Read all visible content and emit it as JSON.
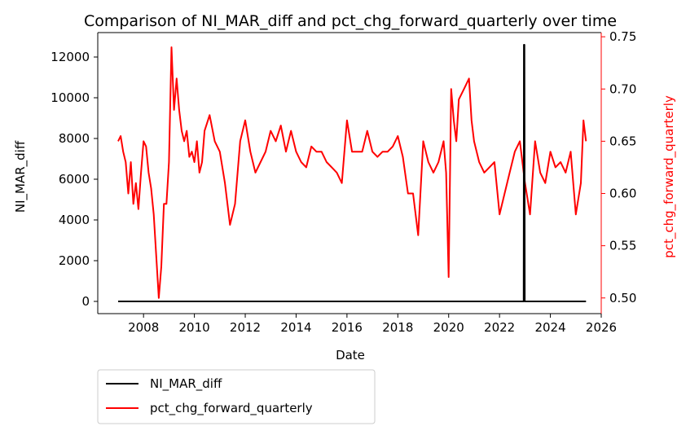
{
  "chart_data": {
    "type": "line",
    "title": "Comparison of NI_MAR_diff and pct_chg_forward_quarterly over time",
    "xlabel": "Date",
    "ylabel_left": "NI_MAR_diff",
    "ylabel_right": "pct_chg_forward_quarterly",
    "xlim": [
      2006.2,
      2026.0
    ],
    "ylim_left": [
      -600,
      13200
    ],
    "ylim_right": [
      0.485,
      0.754
    ],
    "x_ticks": [
      "2008",
      "2010",
      "2012",
      "2014",
      "2016",
      "2018",
      "2020",
      "2022",
      "2024",
      "2026"
    ],
    "y_ticks_left": [
      "0",
      "2000",
      "4000",
      "6000",
      "8000",
      "10000",
      "12000"
    ],
    "y_ticks_right": [
      "0.50",
      "0.55",
      "0.60",
      "0.65",
      "0.70",
      "0.75"
    ],
    "grid": false,
    "legend_position": "below-left",
    "colors": {
      "ni_mar": "#000000",
      "pct_chg": "#ff0000"
    },
    "series": [
      {
        "name": "NI_MAR_diff",
        "axis": "left",
        "x": [
          2007.0,
          2022.95,
          2022.96,
          2022.98,
          2022.99,
          2025.4
        ],
        "y": [
          0,
          0,
          12600,
          12600,
          0,
          0
        ]
      },
      {
        "name": "pct_chg_forward_quarterly",
        "axis": "right",
        "x": [
          2007.0,
          2007.1,
          2007.2,
          2007.3,
          2007.4,
          2007.5,
          2007.6,
          2007.7,
          2007.8,
          2007.9,
          2008.0,
          2008.1,
          2008.2,
          2008.3,
          2008.4,
          2008.5,
          2008.6,
          2008.7,
          2008.8,
          2008.9,
          2009.0,
          2009.1,
          2009.2,
          2009.3,
          2009.4,
          2009.5,
          2009.6,
          2009.7,
          2009.8,
          2009.9,
          2010.0,
          2010.1,
          2010.2,
          2010.3,
          2010.4,
          2010.6,
          2010.8,
          2011.0,
          2011.2,
          2011.4,
          2011.5,
          2011.6,
          2011.8,
          2012.0,
          2012.2,
          2012.4,
          2012.6,
          2012.8,
          2013.0,
          2013.2,
          2013.4,
          2013.6,
          2013.8,
          2014.0,
          2014.2,
          2014.4,
          2014.6,
          2014.8,
          2015.0,
          2015.2,
          2015.4,
          2015.6,
          2015.8,
          2016.0,
          2016.2,
          2016.4,
          2016.6,
          2016.8,
          2017.0,
          2017.2,
          2017.4,
          2017.6,
          2017.8,
          2018.0,
          2018.2,
          2018.4,
          2018.6,
          2018.8,
          2019.0,
          2019.2,
          2019.4,
          2019.6,
          2019.8,
          2019.9,
          2020.0,
          2020.1,
          2020.2,
          2020.3,
          2020.4,
          2020.6,
          2020.8,
          2020.9,
          2021.0,
          2021.2,
          2021.4,
          2021.6,
          2021.8,
          2022.0,
          2022.2,
          2022.4,
          2022.6,
          2022.8,
          2023.0,
          2023.2,
          2023.4,
          2023.6,
          2023.8,
          2024.0,
          2024.2,
          2024.4,
          2024.6,
          2024.8,
          2025.0,
          2025.2,
          2025.3,
          2025.4
        ],
        "y": [
          0.65,
          0.655,
          0.64,
          0.63,
          0.6,
          0.63,
          0.59,
          0.61,
          0.585,
          0.62,
          0.65,
          0.645,
          0.62,
          0.605,
          0.58,
          0.54,
          0.5,
          0.53,
          0.59,
          0.59,
          0.63,
          0.74,
          0.68,
          0.71,
          0.68,
          0.66,
          0.65,
          0.66,
          0.635,
          0.64,
          0.63,
          0.65,
          0.62,
          0.63,
          0.66,
          0.675,
          0.65,
          0.64,
          0.61,
          0.57,
          0.58,
          0.59,
          0.65,
          0.67,
          0.64,
          0.62,
          0.63,
          0.64,
          0.66,
          0.65,
          0.665,
          0.64,
          0.66,
          0.64,
          0.63,
          0.625,
          0.645,
          0.64,
          0.64,
          0.63,
          0.625,
          0.62,
          0.61,
          0.67,
          0.64,
          0.64,
          0.64,
          0.66,
          0.64,
          0.635,
          0.64,
          0.64,
          0.645,
          0.655,
          0.635,
          0.6,
          0.6,
          0.56,
          0.65,
          0.63,
          0.62,
          0.63,
          0.65,
          0.62,
          0.52,
          0.7,
          0.67,
          0.65,
          0.69,
          0.7,
          0.71,
          0.67,
          0.65,
          0.63,
          0.62,
          0.625,
          0.63,
          0.58,
          0.6,
          0.62,
          0.64,
          0.65,
          0.61,
          0.58,
          0.65,
          0.62,
          0.61,
          0.64,
          0.625,
          0.63,
          0.62,
          0.64,
          0.58,
          0.61,
          0.67,
          0.65
        ]
      }
    ]
  }
}
